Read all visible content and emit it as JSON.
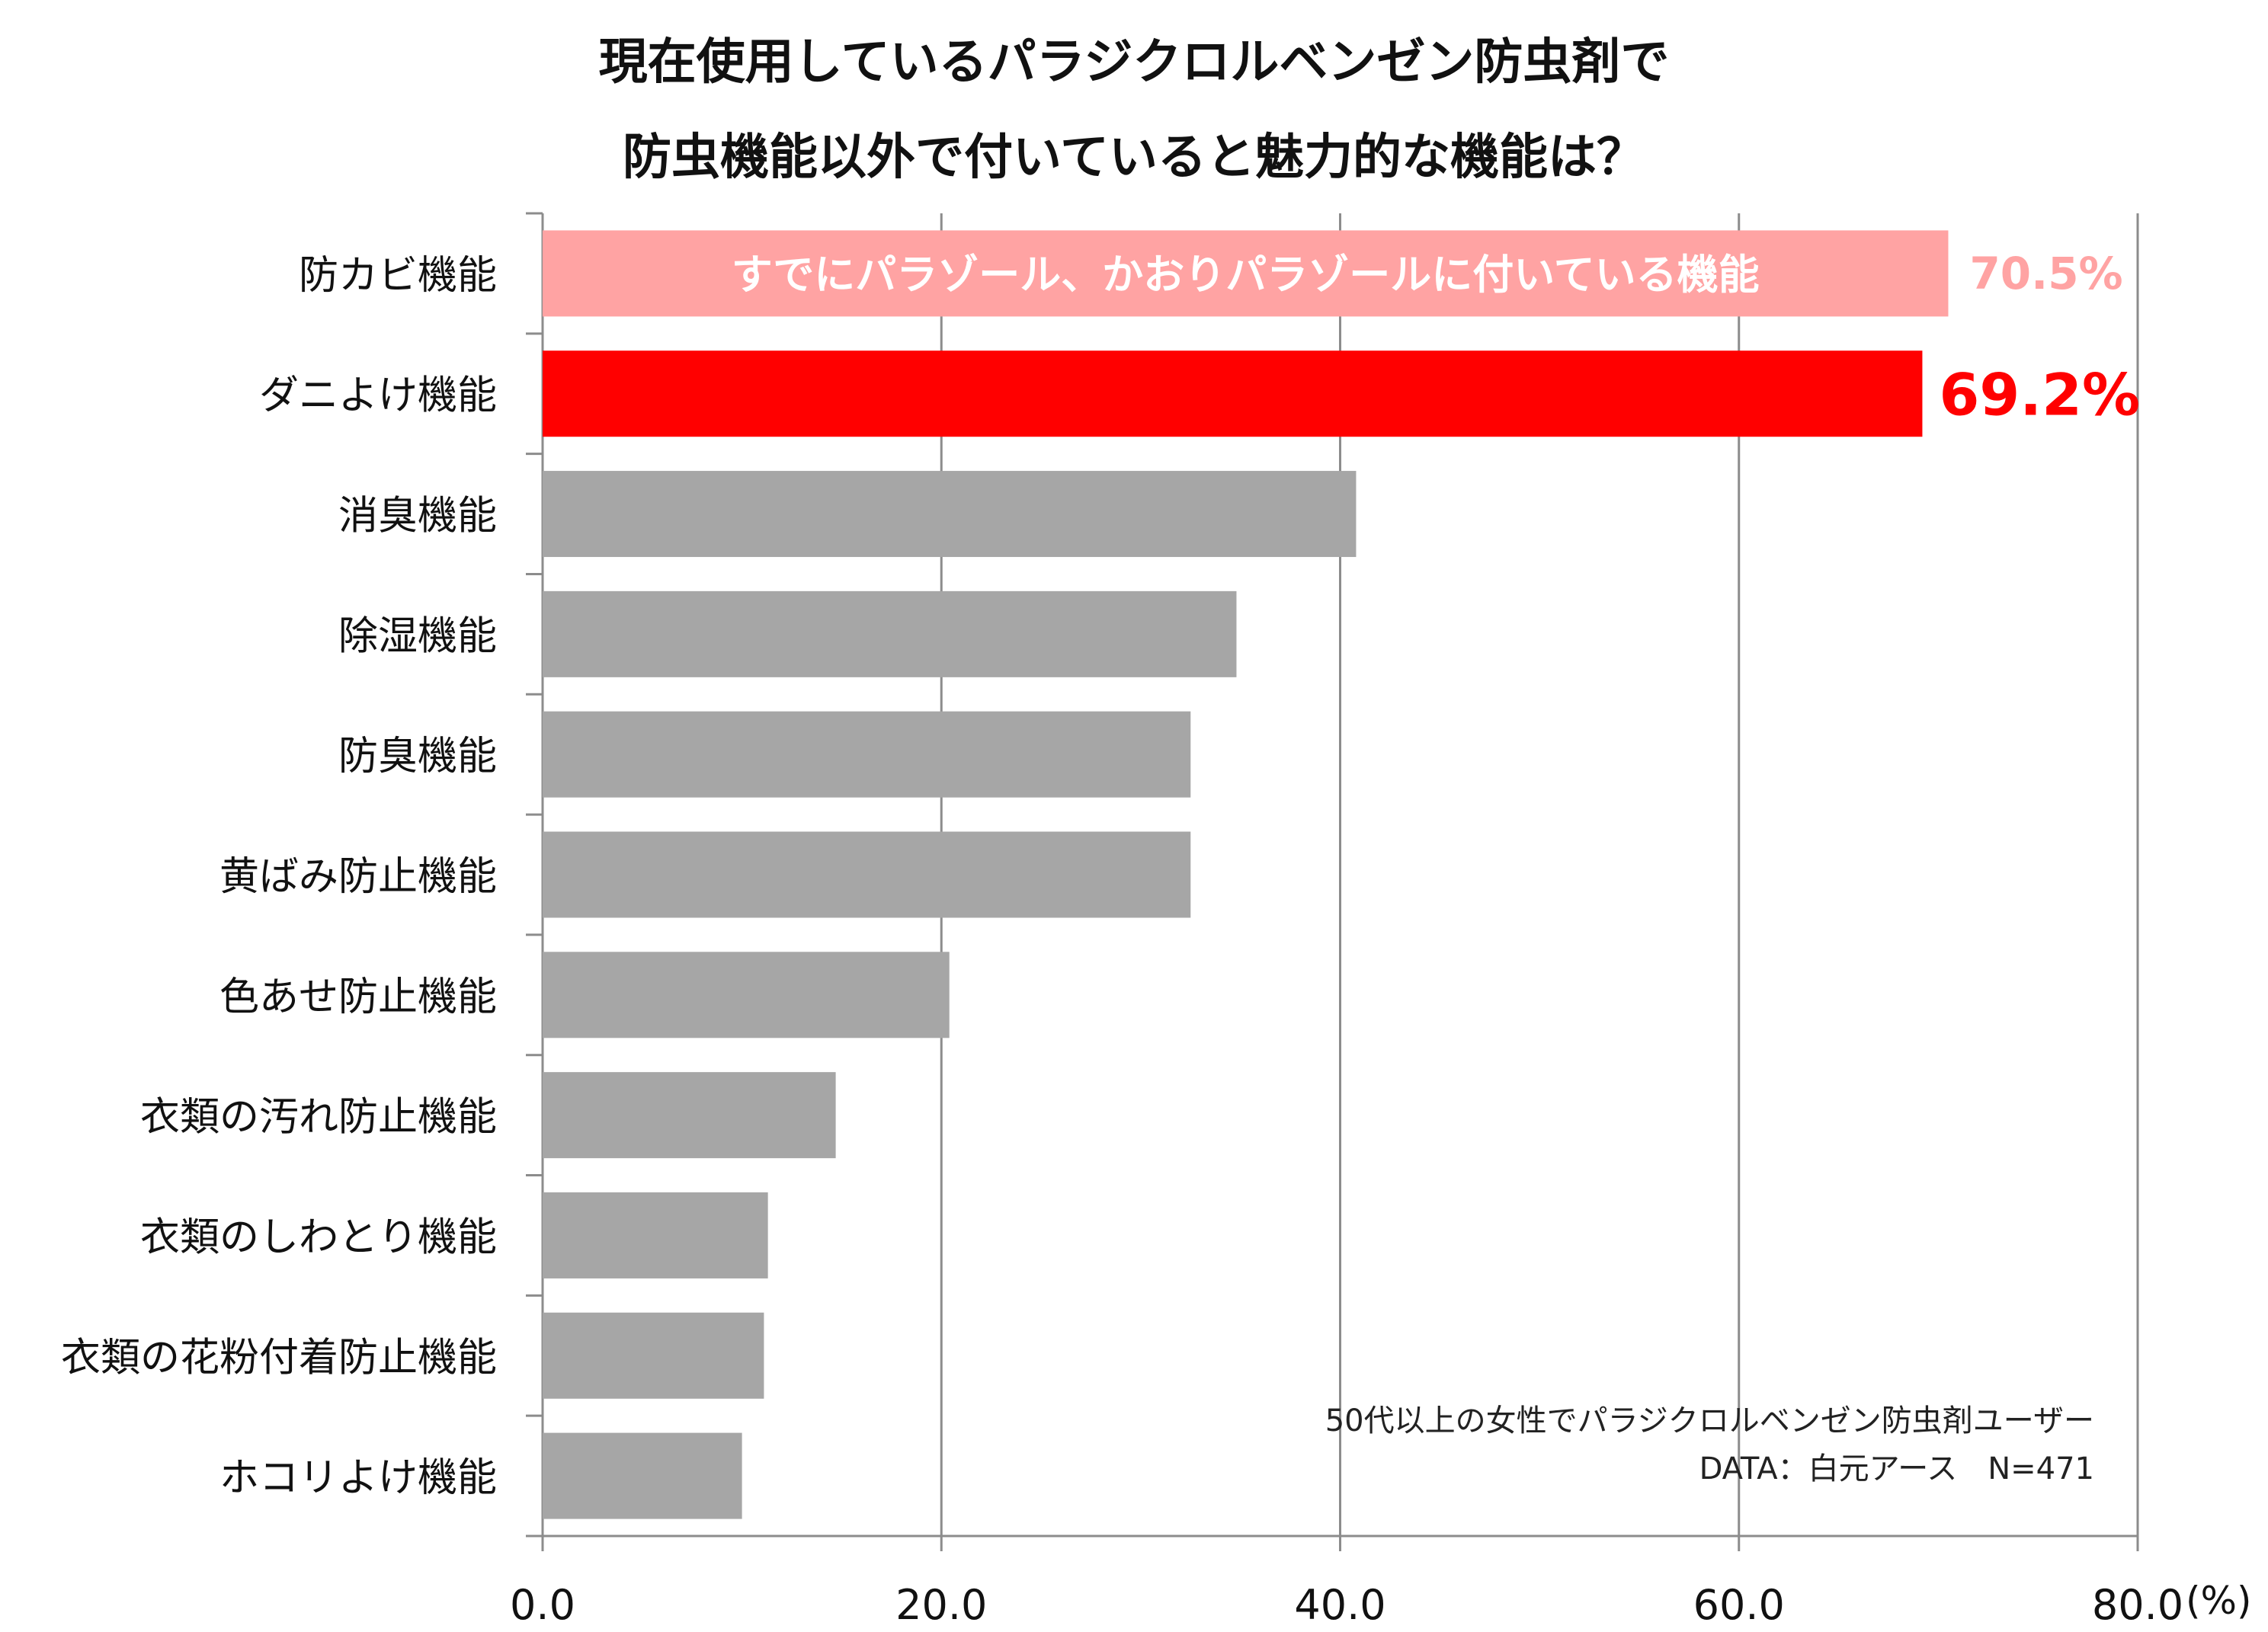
{
  "title_line1": "現在使用しているパラジクロルベンゼン防虫剤で",
  "title_line2": "防虫機能以外で付いていると魅力的な機能は？",
  "note_line1": "50代以上の女性でパラジクロルベンゼン防虫剤ユーザー",
  "note_line2": "DATA：白元アース　N=471",
  "colors": {
    "highlight": "#ff0000",
    "existing": "#ffa3a3",
    "other": "#a6a6a6",
    "grid": "#8c8c8c"
  },
  "chart_data": {
    "type": "bar",
    "orientation": "horizontal",
    "title": "現在使用しているパラジクロルベンゼン防虫剤で 防虫機能以外で付いていると魅力的な機能は？",
    "unit_label": "(%)",
    "xlim": [
      0,
      80
    ],
    "xticks": [
      "0.0",
      "20.0",
      "40.0",
      "60.0",
      "80.0"
    ],
    "grid": true,
    "categories": [
      "防カビ機能",
      "ダニよけ機能",
      "消臭機能",
      "除湿機能",
      "防臭機能",
      "黄ばみ防止機能",
      "色あせ防止機能",
      "衣類の汚れ防止機能",
      "衣類のしわとり機能",
      "衣類の花粉付着防止機能",
      "ホコリよけ機能"
    ],
    "values": [
      70.5,
      69.2,
      40.8,
      34.8,
      32.5,
      32.5,
      20.4,
      14.7,
      11.3,
      11.1,
      10.0
    ],
    "bar_styles": [
      "existing",
      "highlight",
      "other",
      "other",
      "other",
      "other",
      "other",
      "other",
      "other",
      "other",
      "other"
    ],
    "data_labels": [
      "70.5%",
      "69.2%",
      "",
      "",
      "",
      "",
      "",
      "",
      "",
      "",
      ""
    ],
    "bar_annotation": {
      "index": 0,
      "text": "すでにパラゾール、かおりパラゾールに付いている機能"
    }
  }
}
